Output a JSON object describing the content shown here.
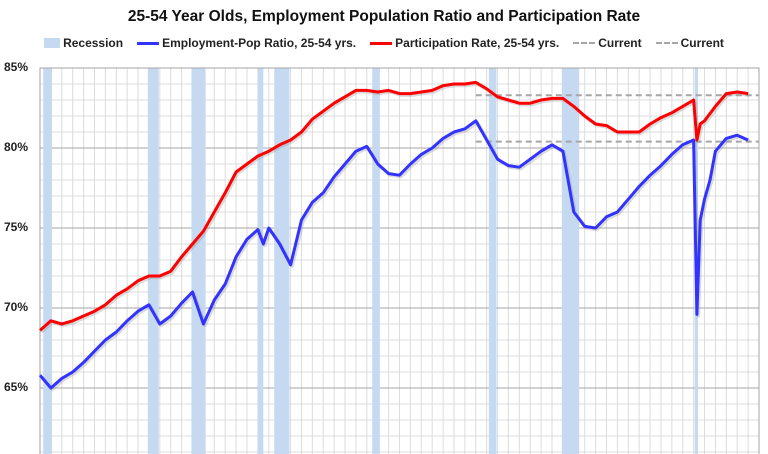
{
  "chart_data": {
    "type": "line",
    "title": "25-54 Year Olds, Employment Population Ratio and Participation Rate",
    "xlabel": "",
    "ylabel": "",
    "xlim": [
      1960,
      2026
    ],
    "ylim": [
      60,
      85
    ],
    "yticks": [
      65,
      70,
      75,
      80,
      85
    ],
    "ytick_labels": [
      "65%",
      "70%",
      "75%",
      "80%",
      "85%"
    ],
    "grid": true,
    "legend": [
      {
        "label": "Recession",
        "kind": "band",
        "color": "#c5d9f1"
      },
      {
        "label": "Employment-Pop Ratio, 25-54 yrs.",
        "kind": "line",
        "color": "#3333ff"
      },
      {
        "label": "Participation Rate, 25-54 yrs.",
        "kind": "line",
        "color": "#ff0000"
      },
      {
        "label": "Current",
        "kind": "dash",
        "color": "#a6a6a6"
      },
      {
        "label": "Current",
        "kind": "dash",
        "color": "#a6a6a6"
      }
    ],
    "legend_position": "top-center",
    "recessions": [
      [
        1960.3,
        1961.1
      ],
      [
        1969.9,
        1970.9
      ],
      [
        1973.9,
        1975.2
      ],
      [
        1980.0,
        1980.5
      ],
      [
        1981.5,
        1982.9
      ],
      [
        1990.5,
        1991.2
      ],
      [
        2001.2,
        2001.9
      ],
      [
        2007.9,
        2009.5
      ],
      [
        2020.1,
        2020.4
      ]
    ],
    "current_lines": [
      {
        "label": "Current",
        "value": 83.3,
        "from": 2000,
        "to": 2026
      },
      {
        "label": "Current",
        "value": 80.4,
        "from": 2000,
        "to": 2026
      }
    ],
    "series": [
      {
        "name": "Employment-Pop Ratio, 25-54 yrs.",
        "color": "#3333ff",
        "x": [
          1960,
          1961,
          1962,
          1963,
          1964,
          1965,
          1966,
          1967,
          1968,
          1969,
          1970,
          1971,
          1972,
          1973,
          1974,
          1975,
          1976,
          1977,
          1978,
          1979,
          1980,
          1980.5,
          1981,
          1982,
          1983,
          1984,
          1985,
          1986,
          1987,
          1988,
          1989,
          1990,
          1991,
          1992,
          1993,
          1994,
          1995,
          1996,
          1997,
          1998,
          1999,
          2000,
          2001,
          2002,
          2003,
          2004,
          2005,
          2006,
          2007,
          2008,
          2009,
          2010,
          2011,
          2012,
          2013,
          2014,
          2015,
          2016,
          2017,
          2018,
          2019,
          2020.0,
          2020.3,
          2020.6,
          2021,
          2021.5,
          2022,
          2023,
          2024,
          2025
        ],
        "y": [
          65.8,
          65.0,
          65.6,
          66.0,
          66.6,
          67.3,
          68.0,
          68.5,
          69.2,
          69.8,
          70.2,
          69.0,
          69.5,
          70.3,
          71.0,
          69.0,
          70.5,
          71.5,
          73.2,
          74.3,
          74.9,
          74.0,
          75.0,
          74.0,
          72.7,
          75.5,
          76.6,
          77.2,
          78.2,
          79.0,
          79.8,
          80.1,
          79.0,
          78.4,
          78.3,
          79.0,
          79.6,
          80.0,
          80.6,
          81.0,
          81.2,
          81.7,
          80.5,
          79.3,
          78.9,
          78.8,
          79.3,
          79.8,
          80.2,
          79.8,
          76.0,
          75.1,
          75.0,
          75.7,
          76.0,
          76.8,
          77.6,
          78.3,
          78.9,
          79.6,
          80.2,
          80.5,
          69.6,
          75.5,
          76.8,
          78.0,
          79.8,
          80.6,
          80.8,
          80.5
        ]
      },
      {
        "name": "Participation Rate, 25-54 yrs.",
        "color": "#ff0000",
        "x": [
          1960,
          1961,
          1962,
          1963,
          1964,
          1965,
          1966,
          1967,
          1968,
          1969,
          1970,
          1971,
          1972,
          1973,
          1974,
          1975,
          1976,
          1977,
          1978,
          1979,
          1980,
          1981,
          1982,
          1983,
          1984,
          1985,
          1986,
          1987,
          1988,
          1989,
          1990,
          1991,
          1992,
          1993,
          1994,
          1995,
          1996,
          1997,
          1998,
          1999,
          2000,
          2001,
          2002,
          2003,
          2004,
          2005,
          2006,
          2007,
          2008,
          2009,
          2010,
          2011,
          2012,
          2013,
          2014,
          2015,
          2016,
          2017,
          2018,
          2019,
          2020.0,
          2020.3,
          2020.6,
          2021,
          2022,
          2023,
          2024,
          2025
        ],
        "y": [
          68.6,
          69.2,
          69.0,
          69.2,
          69.5,
          69.8,
          70.2,
          70.8,
          71.2,
          71.7,
          72.0,
          72.0,
          72.3,
          73.2,
          74.0,
          74.8,
          76.0,
          77.2,
          78.5,
          79.0,
          79.5,
          79.8,
          80.2,
          80.5,
          81.0,
          81.8,
          82.3,
          82.8,
          83.2,
          83.6,
          83.6,
          83.5,
          83.6,
          83.4,
          83.4,
          83.5,
          83.6,
          83.9,
          84.0,
          84.0,
          84.1,
          83.7,
          83.2,
          83.0,
          82.8,
          82.8,
          83.0,
          83.1,
          83.1,
          82.6,
          82.0,
          81.5,
          81.4,
          81.0,
          81.0,
          81.0,
          81.5,
          81.9,
          82.2,
          82.6,
          83.0,
          80.5,
          81.5,
          81.7,
          82.6,
          83.4,
          83.5,
          83.4
        ]
      }
    ]
  }
}
